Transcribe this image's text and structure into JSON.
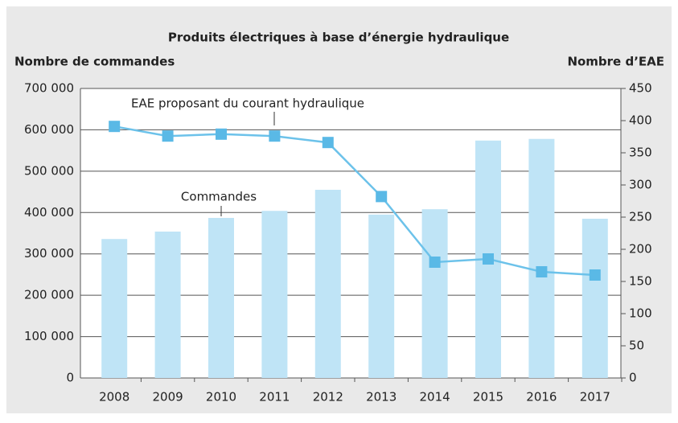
{
  "chart_data": {
    "type": "bar_line",
    "title": "Produits électriques à base d’énergie hydraulique",
    "y_label": "Nombre de commandes",
    "y2_label": "Nombre d’EAE",
    "categories": [
      "2008",
      "2009",
      "2010",
      "2011",
      "2012",
      "2013",
      "2014",
      "2015",
      "2016",
      "2017"
    ],
    "series": [
      {
        "name": "Commandes",
        "type": "bar",
        "color": "#bfe4f6",
        "values": [
          336000,
          354000,
          387000,
          404000,
          455000,
          395000,
          408000,
          574000,
          578000,
          385000
        ]
      },
      {
        "name": "EAE proposant du courant hydraulique",
        "type": "line",
        "axis": "y2",
        "color": "#6cc2ea",
        "marker_color": "#5ab9e6",
        "values": [
          391,
          376,
          379,
          376,
          366,
          282,
          180,
          185,
          165,
          160
        ]
      }
    ],
    "ylim": [
      0,
      700000
    ],
    "yticks": [
      0,
      {
        "value": 100000,
        "label": "100 000"
      },
      {
        "value": 200000,
        "label": "200 000"
      },
      {
        "value": 300000,
        "label": "300 000"
      },
      {
        "value": 400000,
        "label": "400 000"
      },
      {
        "value": 500000,
        "label": "500 000"
      },
      {
        "value": 600000,
        "label": "600 000"
      },
      {
        "value": 700000,
        "label": "700 000"
      }
    ],
    "y2lim": [
      0,
      450
    ],
    "y2ticks": [
      0,
      50,
      100,
      150,
      200,
      250,
      300,
      350,
      400,
      450
    ],
    "grid": true
  }
}
